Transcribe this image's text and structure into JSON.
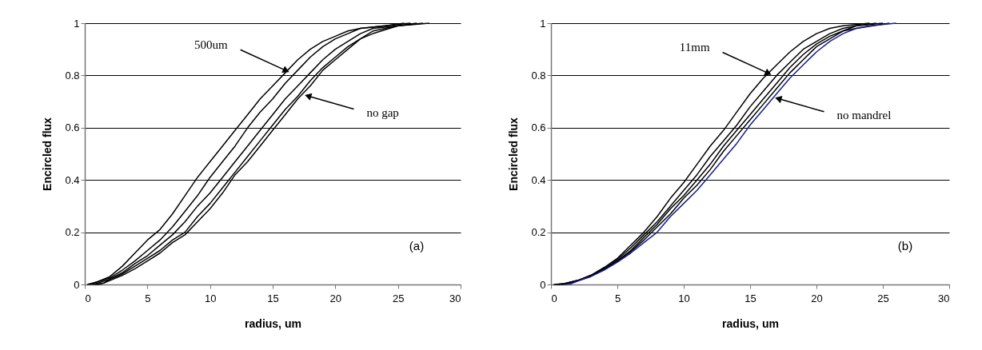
{
  "chart_data": [
    {
      "type": "line",
      "xlabel": "radius, um",
      "ylabel": "Encircled flux",
      "xlim": [
        0,
        30
      ],
      "ylim": [
        0,
        1
      ],
      "xticks": [
        0,
        5,
        10,
        15,
        20,
        25,
        30
      ],
      "yticks": [
        0,
        0.2,
        0.4,
        0.6,
        0.8,
        1
      ],
      "grid": "y",
      "legend": false,
      "marker": "none",
      "line_style": "solid",
      "annotations": [
        {
          "text": "500um",
          "x": 16,
          "y": 0.82
        },
        {
          "text": "no gap",
          "x": 17.9,
          "y": 0.72
        },
        "(a)"
      ],
      "series": [
        {
          "color": "#000000",
          "x": [
            0.2,
            1,
            2,
            3,
            4,
            5,
            6,
            7,
            8,
            9,
            10,
            11,
            12,
            13,
            14,
            15,
            16,
            17,
            18,
            19,
            20,
            21,
            22,
            24,
            25.5
          ],
          "values": [
            0,
            0.01,
            0.03,
            0.07,
            0.12,
            0.17,
            0.21,
            0.27,
            0.34,
            0.41,
            0.47,
            0.53,
            0.59,
            0.65,
            0.71,
            0.76,
            0.81,
            0.86,
            0.9,
            0.93,
            0.95,
            0.97,
            0.98,
            0.99,
            1
          ]
        },
        {
          "color": "#000000",
          "x": [
            0.4,
            1,
            2,
            3,
            4,
            5,
            6,
            7,
            8,
            9,
            10,
            11,
            12,
            13,
            14,
            15,
            16,
            17,
            18,
            19,
            20,
            21,
            22,
            24,
            26
          ],
          "values": [
            0,
            0.01,
            0.025,
            0.055,
            0.09,
            0.13,
            0.17,
            0.22,
            0.28,
            0.34,
            0.41,
            0.47,
            0.53,
            0.6,
            0.66,
            0.71,
            0.77,
            0.82,
            0.87,
            0.91,
            0.94,
            0.96,
            0.98,
            0.99,
            1
          ]
        },
        {
          "color": "#000000",
          "x": [
            0.6,
            1,
            2,
            3,
            4,
            5,
            6,
            7,
            8,
            9,
            10,
            11,
            12,
            13,
            14,
            15,
            16,
            17,
            18,
            19,
            20,
            21,
            22,
            23,
            25,
            26.5
          ],
          "values": [
            0,
            0.005,
            0.02,
            0.045,
            0.08,
            0.11,
            0.15,
            0.19,
            0.24,
            0.3,
            0.35,
            0.41,
            0.47,
            0.53,
            0.59,
            0.65,
            0.71,
            0.76,
            0.81,
            0.86,
            0.9,
            0.93,
            0.96,
            0.98,
            0.99,
            1
          ]
        },
        {
          "color": "#000000",
          "x": [
            0.8,
            1.5,
            2,
            3,
            4,
            5,
            6,
            7,
            8,
            9,
            10,
            11,
            12,
            13,
            14,
            15,
            16,
            17,
            18,
            19,
            20,
            21,
            22,
            23,
            25,
            27
          ],
          "values": [
            0,
            0.005,
            0.02,
            0.04,
            0.07,
            0.1,
            0.13,
            0.17,
            0.2,
            0.26,
            0.31,
            0.37,
            0.43,
            0.49,
            0.55,
            0.61,
            0.67,
            0.72,
            0.78,
            0.83,
            0.87,
            0.91,
            0.94,
            0.97,
            0.99,
            1
          ]
        },
        {
          "color": "#000000",
          "x": [
            1,
            1.5,
            2,
            3,
            4,
            5,
            6,
            7,
            8,
            9,
            10,
            11,
            12,
            13,
            14,
            15,
            16,
            17,
            18,
            19,
            20,
            21,
            22,
            23,
            25,
            27.5
          ],
          "values": [
            0,
            0.005,
            0.015,
            0.035,
            0.06,
            0.09,
            0.12,
            0.16,
            0.19,
            0.24,
            0.29,
            0.35,
            0.42,
            0.47,
            0.53,
            0.59,
            0.65,
            0.71,
            0.76,
            0.82,
            0.86,
            0.9,
            0.94,
            0.96,
            0.99,
            1
          ]
        }
      ]
    },
    {
      "type": "line",
      "xlabel": "radius, um",
      "ylabel": "Encircled flux",
      "xlim": [
        0,
        30
      ],
      "ylim": [
        0,
        1
      ],
      "xticks": [
        0,
        5,
        10,
        15,
        20,
        25,
        30
      ],
      "yticks": [
        0,
        0.2,
        0.4,
        0.6,
        0.8,
        1
      ],
      "grid": "y",
      "legend": false,
      "marker": "none",
      "line_style": "solid",
      "annotations": [
        {
          "text": "11mm",
          "x": 16.3,
          "y": 0.81
        },
        {
          "text": "no mandrel",
          "x": 17.2,
          "y": 0.71
        },
        "(b)"
      ],
      "series": [
        {
          "color": "#000000",
          "x": [
            0.2,
            1,
            2,
            3,
            4,
            5,
            6,
            7,
            8,
            9,
            10,
            11,
            12,
            13,
            14,
            15,
            16,
            17,
            18,
            19,
            20,
            21,
            22,
            24
          ],
          "values": [
            0,
            0.003,
            0.015,
            0.035,
            0.065,
            0.1,
            0.15,
            0.2,
            0.26,
            0.33,
            0.39,
            0.46,
            0.53,
            0.59,
            0.66,
            0.73,
            0.79,
            0.84,
            0.89,
            0.93,
            0.96,
            0.98,
            0.99,
            1
          ]
        },
        {
          "color": "#000000",
          "x": [
            0.4,
            1,
            2,
            3,
            4,
            5,
            6,
            7,
            8,
            9,
            10,
            11,
            12,
            13,
            14,
            15,
            16,
            17,
            18,
            19,
            20,
            21,
            22,
            23,
            24.5
          ],
          "values": [
            0,
            0.003,
            0.015,
            0.035,
            0.06,
            0.095,
            0.14,
            0.19,
            0.24,
            0.3,
            0.36,
            0.42,
            0.49,
            0.55,
            0.61,
            0.68,
            0.74,
            0.8,
            0.85,
            0.9,
            0.93,
            0.96,
            0.98,
            0.99,
            1
          ]
        },
        {
          "color": "#000000",
          "x": [
            0.6,
            1,
            2,
            3,
            4,
            5,
            6,
            7,
            8,
            9,
            10,
            11,
            12,
            13,
            14,
            15,
            16,
            17,
            18,
            19,
            20,
            21,
            22,
            23,
            25
          ],
          "values": [
            0,
            0.003,
            0.015,
            0.033,
            0.06,
            0.09,
            0.13,
            0.18,
            0.23,
            0.29,
            0.34,
            0.4,
            0.46,
            0.53,
            0.59,
            0.65,
            0.71,
            0.77,
            0.83,
            0.88,
            0.92,
            0.95,
            0.97,
            0.99,
            1
          ]
        },
        {
          "color": "#000000",
          "x": [
            0.8,
            1.4,
            2,
            3,
            4,
            5,
            6,
            7,
            8,
            9,
            10,
            11,
            12,
            13,
            14,
            15,
            16,
            17,
            18,
            19,
            20,
            21,
            22,
            23,
            25.5
          ],
          "values": [
            0,
            0.003,
            0.014,
            0.032,
            0.058,
            0.088,
            0.125,
            0.17,
            0.22,
            0.27,
            0.33,
            0.38,
            0.44,
            0.51,
            0.57,
            0.63,
            0.69,
            0.75,
            0.81,
            0.86,
            0.91,
            0.94,
            0.97,
            0.98,
            1
          ]
        },
        {
          "color": "#1a1a8c",
          "x": [
            1,
            1.5,
            2,
            3,
            4,
            5,
            6,
            7,
            8,
            9,
            10,
            11,
            12,
            13,
            14,
            15,
            16,
            17,
            18,
            19,
            20,
            21,
            22,
            23,
            24,
            26
          ],
          "values": [
            0,
            0.003,
            0.013,
            0.03,
            0.055,
            0.085,
            0.12,
            0.16,
            0.2,
            0.26,
            0.31,
            0.36,
            0.42,
            0.48,
            0.54,
            0.61,
            0.67,
            0.73,
            0.79,
            0.84,
            0.89,
            0.93,
            0.96,
            0.98,
            0.99,
            1
          ]
        }
      ]
    }
  ]
}
